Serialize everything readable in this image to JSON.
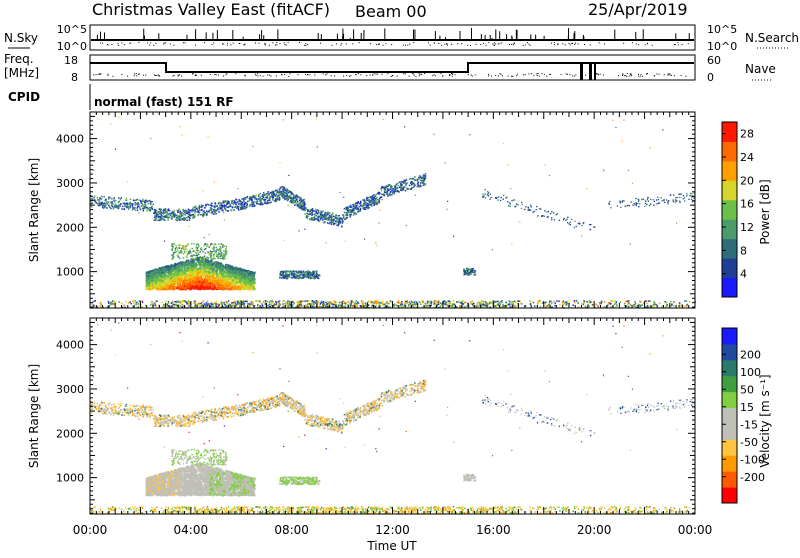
{
  "header": {
    "station": "Christmas Valley East (fitACF)",
    "beam": "Beam 00",
    "date": "25/Apr/2019"
  },
  "sky_panel": {
    "left_label": "N.Sky",
    "left_tick_top": "10^5",
    "left_tick_bottom": "10^0",
    "right_tick_top": "10^5",
    "right_tick_bottom": "10^0",
    "right_label": "N.Search"
  },
  "freq_panel": {
    "left_label_top": "Freq.",
    "left_label_bottom": "[MHz]",
    "left_tick_top": "18",
    "left_tick_bottom": "8",
    "right_tick_top": "60",
    "right_tick_bottom": "0",
    "right_label": "Nave"
  },
  "cpid": {
    "label": "CPID",
    "mode": "normal (fast) 151 RF"
  },
  "colors": {
    "power": [
      "#1a1aff",
      "#1f3e96",
      "#2d6e78",
      "#4d9a6a",
      "#6cc04a",
      "#d6d62a",
      "#ffa000",
      "#ff6a00",
      "#ff1a00"
    ],
    "velocity": [
      "#ff0000",
      "#ff5a00",
      "#ff9a00",
      "#ffc440",
      "#c0c0b8",
      "#c0c0b8",
      "#80d040",
      "#40a040",
      "#2a7a6a",
      "#1f4aa0",
      "#1a1aff"
    ]
  },
  "chart_data": [
    {
      "type": "heatmap",
      "name": "power",
      "x_unit": "hours UT",
      "xlim": [
        0,
        24
      ],
      "ylabel": "Slant Range [km]",
      "ylim": [
        180,
        4600
      ],
      "yticks": [
        {
          "v": 1000,
          "label": "1000"
        },
        {
          "v": 2000,
          "label": "2000"
        },
        {
          "v": 3000,
          "label": "3000"
        },
        {
          "v": 4000,
          "label": "4000"
        }
      ],
      "colorbar": {
        "label": "Power [dB]",
        "ticks": [
          {
            "v": 4,
            "label": "4"
          },
          {
            "v": 8,
            "label": "8"
          },
          {
            "v": 12,
            "label": "12"
          },
          {
            "v": 16,
            "label": "16"
          },
          {
            "v": 20,
            "label": "20"
          },
          {
            "v": 24,
            "label": "24"
          },
          {
            "v": 28,
            "label": "28"
          }
        ],
        "range": [
          0,
          30
        ]
      }
    },
    {
      "type": "heatmap",
      "name": "velocity",
      "x_unit": "hours UT",
      "xlim": [
        0,
        24
      ],
      "xlabel": "Time UT",
      "xticks": [
        {
          "v": 0,
          "label": "00:00"
        },
        {
          "v": 4,
          "label": "04:00"
        },
        {
          "v": 8,
          "label": "08:00"
        },
        {
          "v": 12,
          "label": "12:00"
        },
        {
          "v": 16,
          "label": "16:00"
        },
        {
          "v": 20,
          "label": "20:00"
        },
        {
          "v": 24,
          "label": "00:00"
        }
      ],
      "ylabel": "Slant Range [km]",
      "ylim": [
        180,
        4600
      ],
      "yticks": [
        {
          "v": 1000,
          "label": "1000"
        },
        {
          "v": 2000,
          "label": "2000"
        },
        {
          "v": 3000,
          "label": "3000"
        },
        {
          "v": 4000,
          "label": "4000"
        }
      ],
      "colorbar": {
        "label": "Velocity [m s⁻¹]",
        "ticks": [
          {
            "v": -200,
            "label": "-200"
          },
          {
            "v": -100,
            "label": "-100"
          },
          {
            "v": -50,
            "label": "-50"
          },
          {
            "v": -15,
            "label": "-15"
          },
          {
            "v": 15,
            "label": "15"
          },
          {
            "v": 50,
            "label": "50"
          },
          {
            "v": 100,
            "label": "100"
          },
          {
            "v": 200,
            "label": "200"
          }
        ]
      }
    }
  ]
}
